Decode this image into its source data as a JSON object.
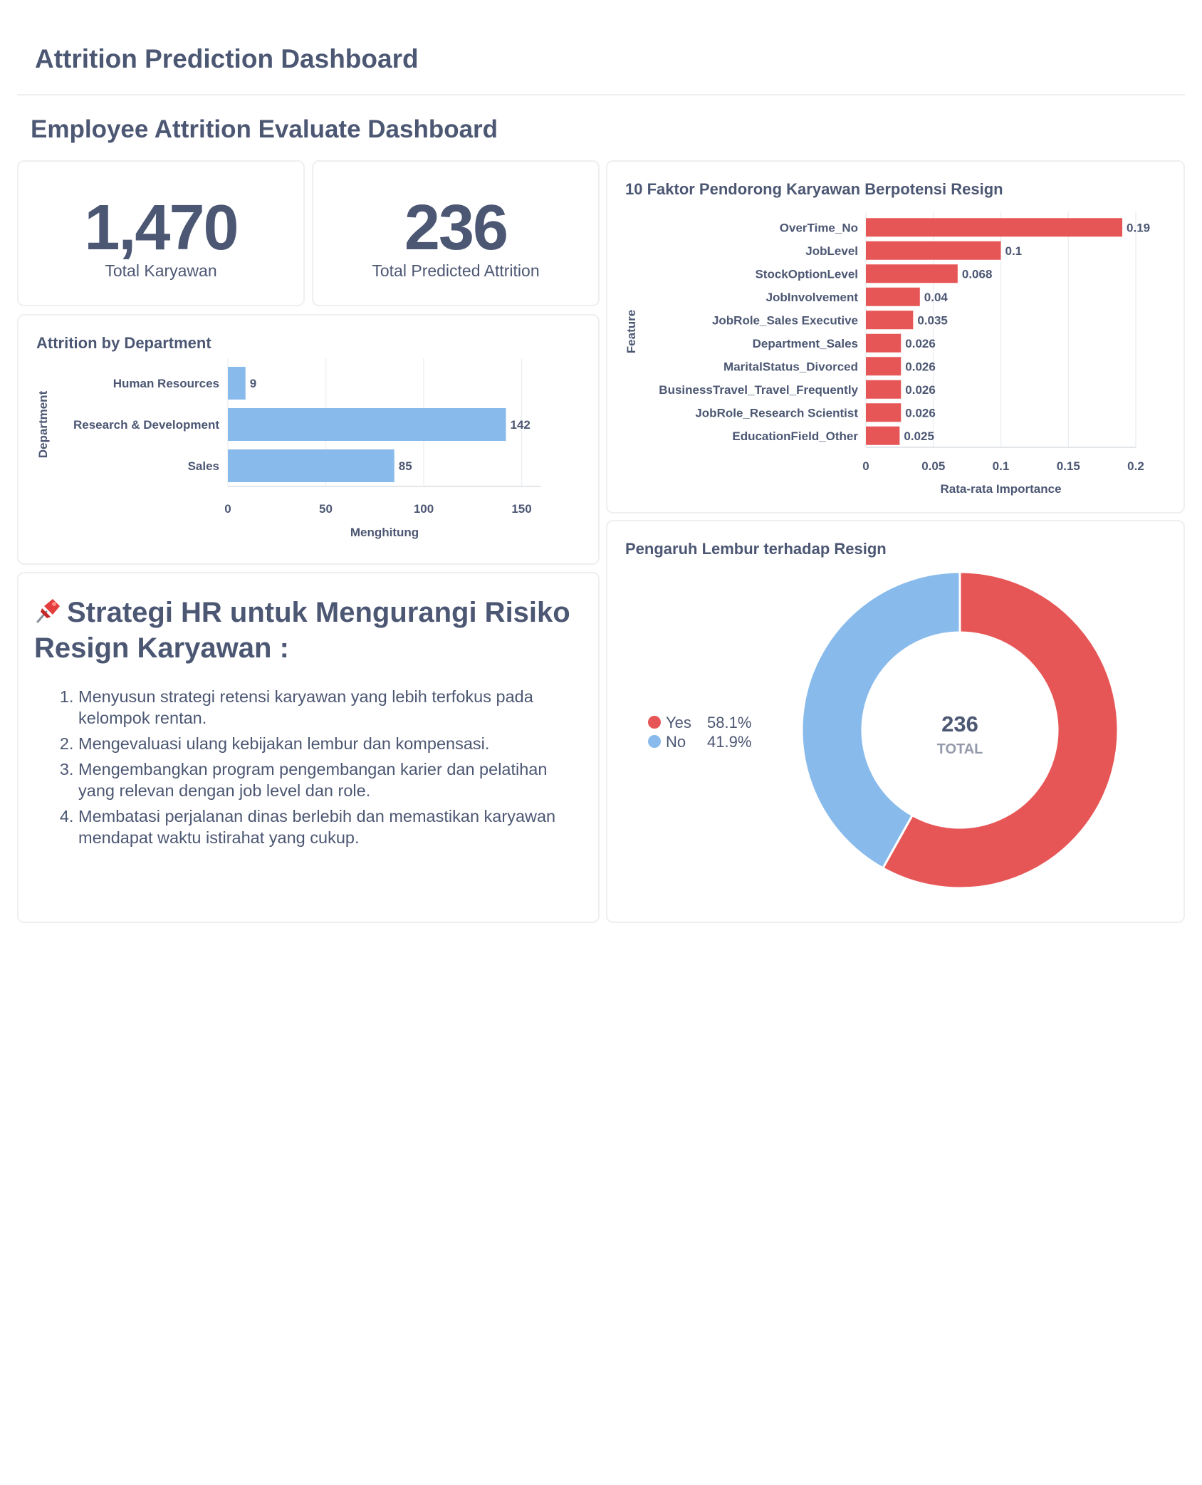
{
  "header": {
    "app_title": "Attrition Prediction Dashboard",
    "dashboard_title": "Employee Attrition Evaluate Dashboard"
  },
  "scalars": [
    {
      "value": "1,470",
      "label": "Total Karyawan"
    },
    {
      "value": "236",
      "label": "Total Predicted Attrition"
    }
  ],
  "colors": {
    "accent_blue": "#88bbec",
    "accent_red": "#e75656",
    "text": "#4c5773",
    "border": "#eeeff1"
  },
  "department_card": {
    "title": "Attrition by Department"
  },
  "features_card": {
    "title": "10 Faktor Pendorong Karyawan Berpotensi Resign"
  },
  "overtime_card": {
    "title": "Pengaruh Lembur terhadap Resign"
  },
  "strategy": {
    "icon": "pushpin-icon",
    "title": "Strategi HR untuk Mengurangi Risiko Resign Karyawan :",
    "items": [
      "Menyusun strategi retensi karyawan yang lebih terfokus pada kelompok rentan.",
      "Mengevaluasi ulang kebijakan lembur dan kompensasi.",
      "Mengembangkan program pengembangan karier dan pelatihan yang relevan dengan job level dan role.",
      "Membatasi perjalanan dinas berlebih dan memastikan karyawan mendapat waktu istirahat yang cukup."
    ]
  },
  "chart_data": [
    {
      "type": "bar",
      "orientation": "horizontal",
      "title": "Attrition by Department",
      "categories": [
        "Human Resources",
        "Research & Development",
        "Sales"
      ],
      "values": [
        9,
        142,
        85
      ],
      "xlabel": "Menghitung",
      "ylabel": "Department",
      "xlim": [
        0,
        160
      ],
      "xticks": [
        0,
        50,
        100,
        150
      ],
      "color": "#88bbec",
      "data_labels": true
    },
    {
      "type": "bar",
      "orientation": "horizontal",
      "title": "10 Faktor Pendorong Karyawan Berpotensi Resign",
      "categories": [
        "OverTime_No",
        "JobLevel",
        "StockOptionLevel",
        "JobInvolvement",
        "JobRole_Sales Executive",
        "Department_Sales",
        "MaritalStatus_Divorced",
        "BusinessTravel_Travel_Frequently",
        "JobRole_Research Scientist",
        "EducationField_Other"
      ],
      "values": [
        0.19,
        0.1,
        0.068,
        0.04,
        0.035,
        0.026,
        0.026,
        0.026,
        0.026,
        0.025
      ],
      "xlabel": "Rata-rata Importance",
      "ylabel": "Feature",
      "xlim": [
        0,
        0.2
      ],
      "xticks": [
        0,
        0.05,
        0.1,
        0.15,
        0.2
      ],
      "color": "#e75656",
      "grid": true,
      "data_labels": true
    },
    {
      "type": "pie",
      "variant": "donut",
      "title": "Pengaruh Lembur terhadap Resign",
      "labels": [
        "Yes",
        "No"
      ],
      "values": [
        58.1,
        41.9
      ],
      "value_labels": [
        "58.1%",
        "41.9%"
      ],
      "colors": [
        "#e75656",
        "#88bbec"
      ],
      "center_value": "236",
      "center_label": "TOTAL",
      "legend_position": "left"
    }
  ]
}
